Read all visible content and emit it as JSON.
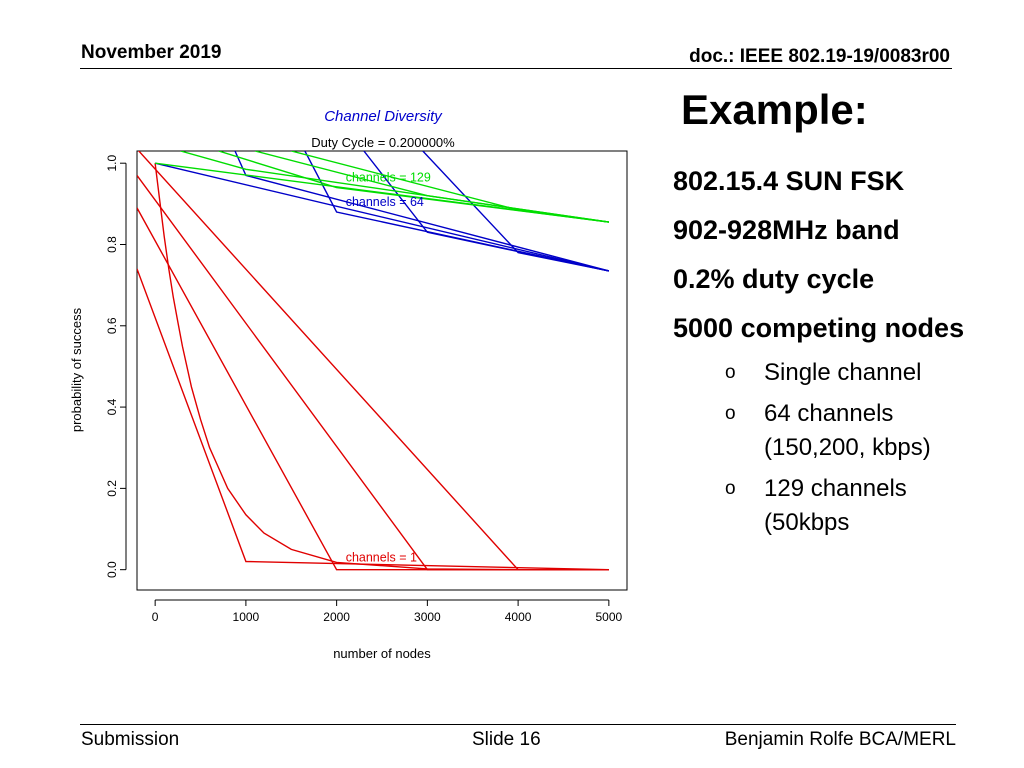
{
  "header": {
    "date": "November 2019",
    "doc": "doc.: IEEE 802.19-19/0083r00"
  },
  "slide": {
    "title": "Example:",
    "bullets": [
      "802.15.4 SUN FSK",
      "902-928MHz band",
      "0.2% duty cycle",
      "5000 competing nodes"
    ],
    "subbullet_marker": "o",
    "subbullets": [
      {
        "line1": "Single channel",
        "line2": ""
      },
      {
        "line1": "64 channels",
        "line2": "(150,200, kbps)"
      },
      {
        "line1": "129 channels",
        "line2": "(50kbps"
      }
    ]
  },
  "footer": {
    "left": "Submission",
    "center": "Slide 16",
    "right": "Benjamin Rolfe BCA/MERL"
  },
  "colors": {
    "channels_1": "#e00000",
    "channels_64": "#0000c8",
    "channels_129": "#00dd00",
    "title": "#0000cc"
  },
  "chart_data": {
    "type": "line",
    "title": "Channel Diversity",
    "subtitle": "Duty Cycle = 0.200000%",
    "xlabel": "number of nodes",
    "ylabel": "probability of success",
    "xlim": [
      -200,
      5200
    ],
    "ylim": [
      -0.05,
      1.03
    ],
    "xticks": [
      0,
      1000,
      2000,
      3000,
      4000,
      5000
    ],
    "yticks": [
      0.0,
      0.2,
      0.4,
      0.6,
      0.8,
      1.0
    ],
    "ytick_labels": [
      "0.0",
      "0.2",
      "0.4",
      "0.6",
      "0.8",
      "1.0"
    ],
    "grid": false,
    "annotations": [
      {
        "text": "channels = 129",
        "x": 2100,
        "y": 0.955,
        "color": "#00dd00"
      },
      {
        "text": "channels = 64",
        "x": 2100,
        "y": 0.895,
        "color": "#0000c8"
      },
      {
        "text": "channels = 1",
        "x": 2100,
        "y": 0.02,
        "color": "#e00000"
      }
    ],
    "series": [
      {
        "group": "channels = 1",
        "color": "#e00000",
        "x": [
          0,
          100,
          150,
          200,
          250,
          300,
          400,
          500,
          600,
          700,
          800,
          1000,
          1200,
          1500,
          2000,
          3000,
          4000,
          5000
        ],
        "y": [
          1.0,
          0.82,
          0.74,
          0.67,
          0.61,
          0.55,
          0.45,
          0.37,
          0.3,
          0.25,
          0.2,
          0.135,
          0.09,
          0.05,
          0.018,
          0.002,
          0.0,
          0.0
        ]
      },
      {
        "group": "channels = 1",
        "color": "#e00000",
        "x": [
          -200,
          1000,
          5000
        ],
        "y": [
          0.74,
          0.02,
          0.0
        ]
      },
      {
        "group": "channels = 1",
        "color": "#e00000",
        "x": [
          -200,
          2000,
          5000
        ],
        "y": [
          0.89,
          0.0,
          0.0
        ]
      },
      {
        "group": "channels = 1",
        "color": "#e00000",
        "x": [
          -200,
          3000,
          5000
        ],
        "y": [
          0.97,
          0.0,
          0.0
        ]
      },
      {
        "group": "channels = 1",
        "color": "#e00000",
        "x": [
          -200,
          4000,
          5000
        ],
        "y": [
          1.035,
          0.0,
          0.0
        ]
      },
      {
        "group": "channels = 64",
        "color": "#0000c8",
        "x": [
          0,
          5000
        ],
        "y": [
          1.0,
          0.735
        ]
      },
      {
        "group": "channels = 64",
        "color": "#0000c8",
        "x": [
          880,
          1000,
          5000
        ],
        "y": [
          1.03,
          0.97,
          0.735
        ]
      },
      {
        "group": "channels = 64",
        "color": "#0000c8",
        "x": [
          1650,
          2000,
          5000
        ],
        "y": [
          1.03,
          0.88,
          0.735
        ]
      },
      {
        "group": "channels = 64",
        "color": "#0000c8",
        "x": [
          2300,
          3000,
          5000
        ],
        "y": [
          1.03,
          0.83,
          0.735
        ]
      },
      {
        "group": "channels = 64",
        "color": "#0000c8",
        "x": [
          2950,
          4000,
          5000
        ],
        "y": [
          1.03,
          0.78,
          0.735
        ]
      },
      {
        "group": "channels = 129",
        "color": "#00dd00",
        "x": [
          0,
          5000
        ],
        "y": [
          1.0,
          0.855
        ]
      },
      {
        "group": "channels = 129",
        "color": "#00dd00",
        "x": [
          280,
          1000,
          5000
        ],
        "y": [
          1.03,
          0.985,
          0.855
        ]
      },
      {
        "group": "channels = 129",
        "color": "#00dd00",
        "x": [
          700,
          2000,
          5000
        ],
        "y": [
          1.03,
          0.94,
          0.855
        ]
      },
      {
        "group": "channels = 129",
        "color": "#00dd00",
        "x": [
          1100,
          3000,
          5000
        ],
        "y": [
          1.03,
          0.92,
          0.855
        ]
      },
      {
        "group": "channels = 129",
        "color": "#00dd00",
        "x": [
          1500,
          4000,
          5000
        ],
        "y": [
          1.03,
          0.885,
          0.855
        ]
      }
    ]
  }
}
